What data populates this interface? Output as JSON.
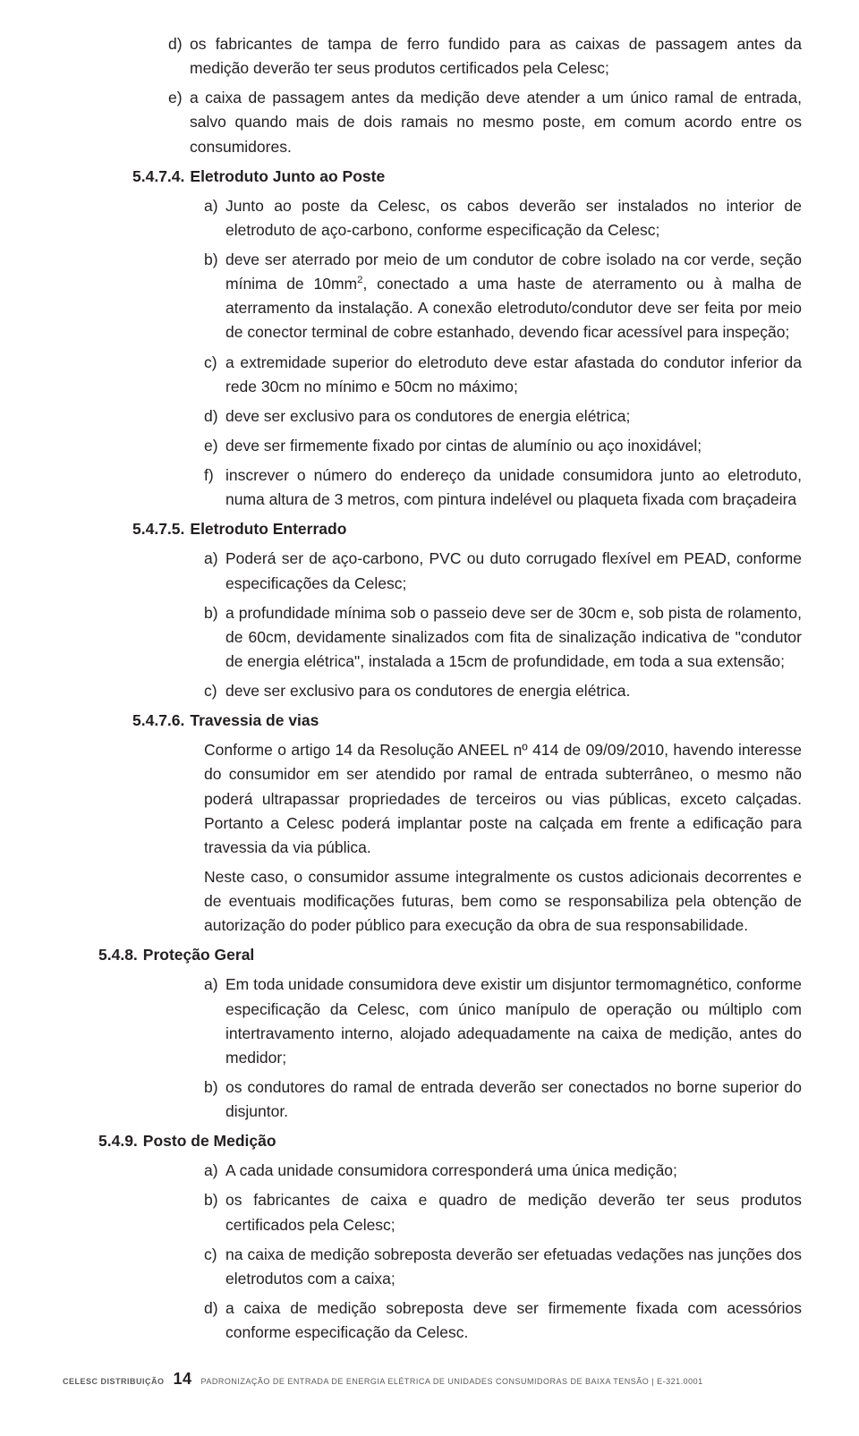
{
  "intro_items": [
    {
      "marker": "d)",
      "text": "os fabricantes de tampa de ferro fundido para as caixas de passagem antes da medição deverão ter seus produtos certificados pela Celesc;"
    },
    {
      "marker": "e)",
      "text": "a caixa de passagem antes da medição deve atender a um único ramal de entrada, salvo quando mais de dois ramais no mesmo poste, em comum acordo entre os consumidores."
    }
  ],
  "s5474": {
    "num": "5.4.7.4.",
    "title": "Eletroduto Junto ao Poste",
    "items": [
      {
        "marker": "a)",
        "text": "Junto ao poste da Celesc, os cabos deverão ser instalados no interior de eletroduto de aço-carbono, conforme especificação da Celesc;"
      },
      {
        "marker": "b)",
        "text": "deve ser aterrado por meio de um condutor de cobre isolado na cor verde, seção mínima de 10mm², conectado a uma haste de aterramento ou à malha de aterramento da instalação. A conexão eletroduto/condutor deve ser feita por meio de conector terminal de cobre estanhado, devendo ficar acessível para inspeção;",
        "has_sup": true
      },
      {
        "marker": "c)",
        "text": "a extremidade superior do eletroduto deve estar afastada do condutor inferior da rede 30cm no mínimo e 50cm no máximo;"
      },
      {
        "marker": "d)",
        "text": "deve ser exclusivo para os condutores de energia elétrica;"
      },
      {
        "marker": "e)",
        "text": "deve ser firmemente fixado por cintas de alumínio ou aço inoxidável;"
      },
      {
        "marker": "f)",
        "text": "inscrever o número do endereço da unidade consumidora junto ao eletroduto, numa altura de 3 metros, com pintura indelével ou plaqueta fixada com braçadeira"
      }
    ]
  },
  "s5475": {
    "num": "5.4.7.5.",
    "title": "Eletroduto Enterrado",
    "items": [
      {
        "marker": "a)",
        "text": "Poderá ser de aço-carbono, PVC ou duto corrugado flexível em PEAD, conforme especificações da Celesc;"
      },
      {
        "marker": "b)",
        "text": "a profundidade mínima sob o passeio deve ser de 30cm e, sob pista de rolamento, de 60cm, devidamente sinalizados com fita de sinalização indicativa de \"condutor de energia elétrica\", instalada a 15cm de profundidade, em toda a sua extensão;"
      },
      {
        "marker": "c)",
        "text": "deve ser exclusivo para os condutores de energia elétrica."
      }
    ]
  },
  "s5476": {
    "num": "5.4.7.6.",
    "title": "Travessia de vias",
    "paras": [
      "Conforme o artigo 14 da Resolução ANEEL nº 414 de 09/09/2010, havendo interesse do consumidor em ser atendido por ramal de entrada subterrâneo, o mesmo não poderá ultrapassar propriedades de terceiros ou vias públicas, exceto calçadas. Portanto a Celesc poderá implantar poste na calçada em frente a edificação para travessia da via pública.",
      "Neste caso, o consumidor assume integralmente os custos adicionais decorrentes e de eventuais modificações futuras, bem como se responsabiliza pela obtenção de autorização do poder público para execução da obra de sua responsabilidade."
    ]
  },
  "s548": {
    "num": "5.4.8.",
    "title": "Proteção Geral",
    "items": [
      {
        "marker": "a)",
        "text": "Em toda unidade consumidora deve existir um disjuntor termomagnético, conforme especificação da Celesc, com único manípulo de operação ou múltiplo com intertravamento interno, alojado adequadamente na caixa de medição, antes do medidor;"
      },
      {
        "marker": "b)",
        "text": "os condutores do ramal de entrada deverão ser conectados no borne superior do disjuntor."
      }
    ]
  },
  "s549": {
    "num": "5.4.9.",
    "title": "Posto de Medição",
    "items": [
      {
        "marker": "a)",
        "text": "A cada unidade consumidora corresponderá uma única medição;"
      },
      {
        "marker": "b)",
        "text": "os fabricantes de caixa e quadro de medição deverão ter seus produtos certificados pela Celesc;"
      },
      {
        "marker": "c)",
        "text": "na caixa de medição sobreposta deverão ser efetuadas vedações nas junções dos eletrodutos com a caixa;"
      },
      {
        "marker": "d)",
        "text": "a caixa de medição sobreposta deve ser firmemente fixada com acessórios conforme especificação da Celesc."
      }
    ]
  },
  "footer": {
    "brand": "CELESC DISTRIBUIÇÃO",
    "page": "14",
    "title": "PADRONIZAÇÃO DE ENTRADA DE ENERGIA ELÉTRICA DE UNIDADES CONSUMIDORAS DE BAIXA TENSÃO | E-321.0001"
  }
}
